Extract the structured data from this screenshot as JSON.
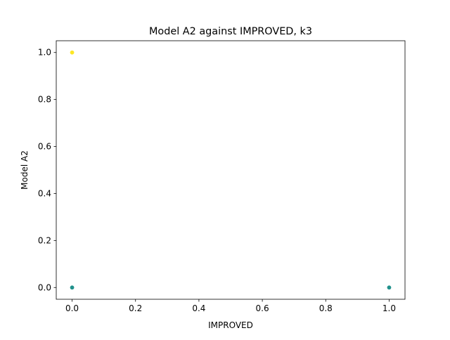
{
  "chart_data": {
    "type": "scatter",
    "title": "Model A2 against IMPROVED, k3",
    "xlabel": "IMPROVED",
    "ylabel": "Model A2",
    "xlim": [
      -0.05,
      1.05
    ],
    "ylim": [
      -0.05,
      1.05
    ],
    "x_ticks": [
      "0.0",
      "0.2",
      "0.4",
      "0.6",
      "0.8",
      "1.0"
    ],
    "y_ticks": [
      "0.0",
      "0.2",
      "0.4",
      "0.6",
      "0.8",
      "1.0"
    ],
    "grid": false,
    "legend": "none",
    "points": [
      {
        "x": 0.0,
        "y": 1.0,
        "color": "#fde725"
      },
      {
        "x": 0.0,
        "y": 0.0,
        "color": "#21918c"
      },
      {
        "x": 1.0,
        "y": 0.0,
        "color": "#21918c"
      }
    ]
  }
}
